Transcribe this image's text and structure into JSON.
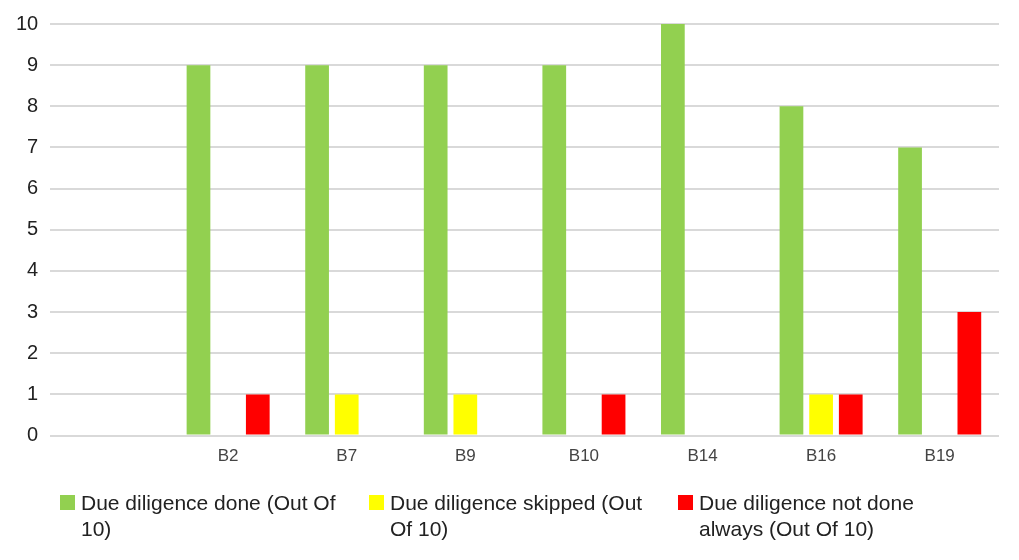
{
  "chart_data": {
    "type": "bar",
    "categories": [
      null,
      "B2",
      "B7",
      "B9",
      "B10",
      "B14",
      "B16",
      "B19"
    ],
    "series": [
      {
        "name": "Due diligence done (Out Of 10)",
        "color": "#92d050",
        "values": [
          null,
          9,
          9,
          9,
          9,
          10,
          8,
          7
        ]
      },
      {
        "name": "Due diligence skipped (Out Of 10)",
        "color": "#ffff00",
        "values": [
          null,
          0,
          1,
          1,
          0,
          0,
          1,
          0
        ]
      },
      {
        "name": "Due diligence not done always (Out Of 10)",
        "color": "#ff0000",
        "values": [
          null,
          1,
          0,
          0,
          1,
          0,
          1,
          3
        ]
      }
    ],
    "ylim": [
      0,
      10
    ],
    "yticks": [
      0,
      1,
      2,
      3,
      4,
      5,
      6,
      7,
      8,
      9,
      10
    ],
    "grid": "y",
    "legend": "bottom"
  }
}
